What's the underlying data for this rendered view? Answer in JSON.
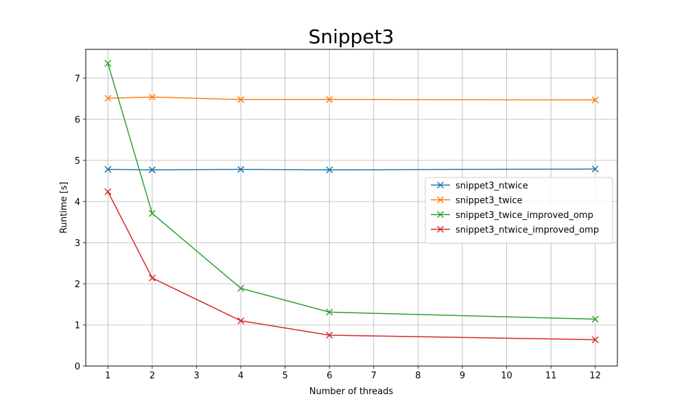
{
  "chart_data": {
    "type": "line",
    "title": "Snippet3",
    "xlabel": "Number of threads",
    "ylabel": "Runtime [s]",
    "xlim": [
      0.5,
      12.5
    ],
    "ylim": [
      0,
      7.7
    ],
    "xticks": [
      1,
      2,
      3,
      4,
      5,
      6,
      7,
      8,
      9,
      10,
      11,
      12
    ],
    "yticks": [
      0,
      1,
      2,
      3,
      4,
      5,
      6,
      7
    ],
    "x": [
      1,
      2,
      4,
      6,
      12
    ],
    "grid": true,
    "marker": "x",
    "legend_position": "center-right",
    "series": [
      {
        "name": "snippet3_ntwice",
        "color": "#1f77b4",
        "values": [
          4.78,
          4.77,
          4.78,
          4.77,
          4.79
        ]
      },
      {
        "name": "snippet3_twice",
        "color": "#ff7f0e",
        "values": [
          6.51,
          6.54,
          6.48,
          6.48,
          6.47
        ]
      },
      {
        "name": "snippet3_twice_improved_omp",
        "color": "#2ca02c",
        "values": [
          7.36,
          3.71,
          1.89,
          1.31,
          1.14
        ]
      },
      {
        "name": "snippet3_ntwice_improved_omp",
        "color": "#d62728",
        "values": [
          4.24,
          2.14,
          1.1,
          0.75,
          0.64
        ]
      }
    ]
  }
}
